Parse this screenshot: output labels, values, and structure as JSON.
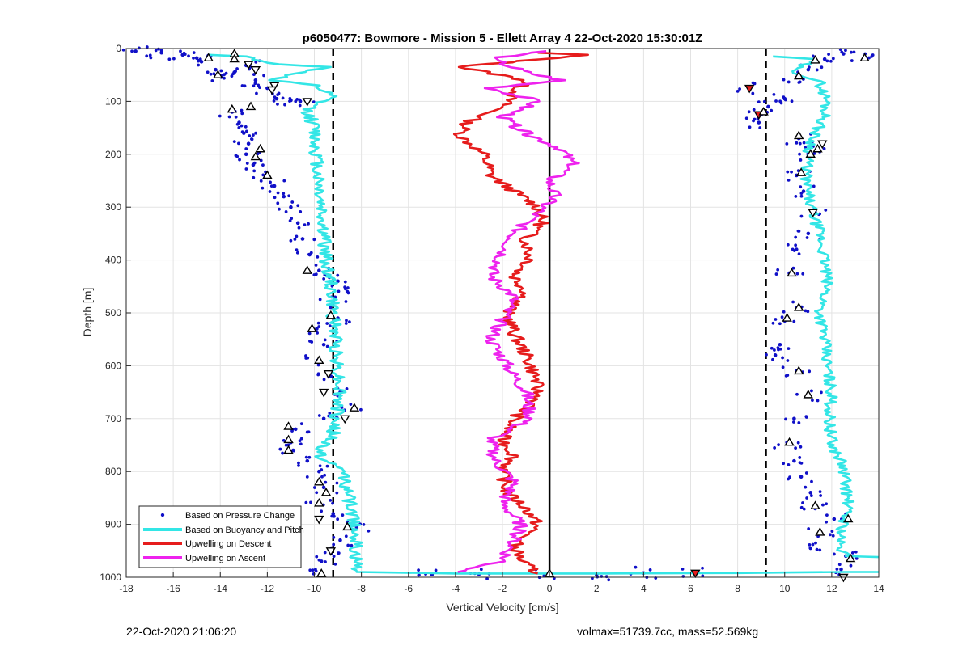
{
  "chart_data": {
    "type": "scatter",
    "title": "p6050477: Bowmore - Mission 5 - Ellett Array 4 22-Oct-2020 15:30:01Z",
    "xlabel": "Vertical Velocity [cm/s]",
    "ylabel": "Depth [m]",
    "xlim": [
      -18,
      14
    ],
    "ylim": [
      0,
      1000
    ],
    "y_reversed": true,
    "grid": true,
    "legend_position": "bottom-left",
    "xticks": [
      -18,
      -16,
      -14,
      -12,
      -10,
      -8,
      -6,
      -4,
      -2,
      0,
      2,
      4,
      6,
      8,
      10,
      12,
      14
    ],
    "yticks": [
      0,
      100,
      200,
      300,
      400,
      500,
      600,
      700,
      800,
      900,
      1000
    ],
    "reference_lines": [
      {
        "x": -9.2,
        "style": "dashed",
        "color": "#000000"
      },
      {
        "x": 9.2,
        "style": "dashed",
        "color": "#000000"
      },
      {
        "x": 0,
        "style": "solid",
        "color": "#000000"
      }
    ],
    "series": [
      {
        "name": "Based on Pressure Change",
        "style": "dots",
        "color": "#1010c8",
        "points": [
          [
            -17.6,
            5
          ],
          [
            -16.5,
            8
          ],
          [
            -15.6,
            12
          ],
          [
            -15.0,
            18
          ],
          [
            -14.8,
            25
          ],
          [
            -14.2,
            40
          ],
          [
            -14.0,
            52
          ],
          [
            -13.4,
            45
          ],
          [
            -12.9,
            32
          ],
          [
            -12.5,
            60
          ],
          [
            -12.0,
            75
          ],
          [
            -11.6,
            95
          ],
          [
            -11.0,
            98
          ],
          [
            -10.6,
            100
          ],
          [
            -13.5,
            120
          ],
          [
            -13.2,
            140
          ],
          [
            -13.0,
            160
          ],
          [
            -12.8,
            180
          ],
          [
            -12.9,
            200
          ],
          [
            -12.6,
            220
          ],
          [
            -12.0,
            240
          ],
          [
            -11.7,
            260
          ],
          [
            -11.3,
            280
          ],
          [
            -11.0,
            300
          ],
          [
            -10.7,
            330
          ],
          [
            -10.5,
            360
          ],
          [
            -10.2,
            390
          ],
          [
            -9.8,
            420
          ],
          [
            -9.0,
            440
          ],
          [
            -8.6,
            460
          ],
          [
            -9.2,
            480
          ],
          [
            -9.0,
            510
          ],
          [
            -9.9,
            530
          ],
          [
            -9.6,
            560
          ],
          [
            -9.8,
            590
          ],
          [
            -9.3,
            620
          ],
          [
            -8.9,
            650
          ],
          [
            -8.3,
            680
          ],
          [
            -9.6,
            700
          ],
          [
            -10.8,
            720
          ],
          [
            -11.0,
            745
          ],
          [
            -10.9,
            760
          ],
          [
            -10.3,
            780
          ],
          [
            -9.8,
            800
          ],
          [
            -9.6,
            830
          ],
          [
            -9.8,
            860
          ],
          [
            -9.2,
            880
          ],
          [
            -8.2,
            905
          ],
          [
            -8.9,
            930
          ],
          [
            -9.3,
            950
          ],
          [
            -9.7,
            970
          ],
          [
            -9.7,
            995
          ],
          [
            -5.0,
            995
          ],
          [
            -3.0,
            994
          ],
          [
            0.0,
            995
          ],
          [
            2.0,
            995
          ],
          [
            4.0,
            992
          ],
          [
            6.2,
            992
          ],
          [
            8.5,
            75
          ],
          [
            9.0,
            125
          ],
          [
            8.9,
            140
          ],
          [
            9.3,
            110
          ],
          [
            10.0,
            95
          ],
          [
            10.5,
            55
          ],
          [
            11.0,
            40
          ],
          [
            11.7,
            20
          ],
          [
            13.4,
            18
          ],
          [
            12.5,
            10
          ],
          [
            10.6,
            170
          ],
          [
            11.2,
            185
          ],
          [
            11.0,
            200
          ],
          [
            10.5,
            240
          ],
          [
            10.8,
            270
          ],
          [
            11.3,
            310
          ],
          [
            11.0,
            350
          ],
          [
            10.5,
            380
          ],
          [
            10.2,
            425
          ],
          [
            10.5,
            490
          ],
          [
            10.0,
            515
          ],
          [
            9.8,
            560
          ],
          [
            9.6,
            580
          ],
          [
            10.5,
            610
          ],
          [
            11.0,
            655
          ],
          [
            10.4,
            700
          ],
          [
            10.1,
            745
          ],
          [
            10.4,
            780
          ],
          [
            10.7,
            810
          ],
          [
            11.1,
            840
          ],
          [
            11.3,
            870
          ],
          [
            12.1,
            890
          ],
          [
            11.5,
            915
          ],
          [
            11.1,
            945
          ],
          [
            12.6,
            960
          ],
          [
            12.4,
            985
          ]
        ]
      },
      {
        "name": "Based on Buoyancy and Pitch",
        "style": "line",
        "color": "#33e6e6",
        "points": [
          [
            -14.5,
            12
          ],
          [
            -13.0,
            15
          ],
          [
            -11.5,
            30
          ],
          [
            -9.5,
            35
          ],
          [
            -12.0,
            60
          ],
          [
            -10.0,
            70
          ],
          [
            -9.3,
            90
          ],
          [
            -10.3,
            115
          ],
          [
            -10.0,
            150
          ],
          [
            -9.9,
            200
          ],
          [
            -9.8,
            250
          ],
          [
            -9.7,
            300
          ],
          [
            -9.6,
            350
          ],
          [
            -9.5,
            400
          ],
          [
            -9.3,
            450
          ],
          [
            -9.2,
            500
          ],
          [
            -9.1,
            550
          ],
          [
            -9.0,
            600
          ],
          [
            -8.9,
            650
          ],
          [
            -9.1,
            700
          ],
          [
            -9.2,
            730
          ],
          [
            -9.8,
            760
          ],
          [
            -9.6,
            780
          ],
          [
            -8.7,
            800
          ],
          [
            -8.6,
            840
          ],
          [
            -8.4,
            880
          ],
          [
            -8.2,
            910
          ],
          [
            -8.3,
            950
          ],
          [
            -8.2,
            990
          ],
          [
            -4.0,
            993
          ],
          [
            2.0,
            993
          ],
          [
            8.0,
            992
          ],
          [
            12.5,
            990
          ],
          [
            14.0,
            990
          ]
        ],
        "points_right": [
          [
            9.5,
            15
          ],
          [
            11.3,
            20
          ],
          [
            10.3,
            40
          ],
          [
            11.5,
            65
          ],
          [
            11.8,
            100
          ],
          [
            11.7,
            130
          ],
          [
            11.3,
            160
          ],
          [
            11.0,
            200
          ],
          [
            10.9,
            250
          ],
          [
            11.1,
            300
          ],
          [
            11.5,
            350
          ],
          [
            11.7,
            400
          ],
          [
            11.8,
            450
          ],
          [
            11.5,
            500
          ],
          [
            11.7,
            550
          ],
          [
            11.8,
            600
          ],
          [
            12.0,
            650
          ],
          [
            11.9,
            700
          ],
          [
            12.0,
            750
          ],
          [
            12.4,
            780
          ],
          [
            12.6,
            820
          ],
          [
            12.7,
            860
          ],
          [
            12.5,
            900
          ],
          [
            12.3,
            940
          ],
          [
            12.6,
            960
          ],
          [
            14.0,
            962
          ]
        ]
      },
      {
        "name": "Upwelling on Descent",
        "style": "line",
        "color": "#e61c1c",
        "points": [
          [
            -0.5,
            8
          ],
          [
            1.5,
            12
          ],
          [
            -3.8,
            35
          ],
          [
            -1.0,
            60
          ],
          [
            -2.0,
            110
          ],
          [
            -3.5,
            140
          ],
          [
            -3.8,
            165
          ],
          [
            -2.8,
            200
          ],
          [
            -2.5,
            240
          ],
          [
            -1.5,
            270
          ],
          [
            -0.5,
            300
          ],
          [
            -0.3,
            330
          ],
          [
            -1.0,
            360
          ],
          [
            -0.8,
            400
          ],
          [
            -1.5,
            430
          ],
          [
            -1.0,
            460
          ],
          [
            -1.8,
            500
          ],
          [
            -1.5,
            540
          ],
          [
            -1.0,
            580
          ],
          [
            -0.6,
            620
          ],
          [
            -0.5,
            660
          ],
          [
            -1.5,
            700
          ],
          [
            -2.0,
            740
          ],
          [
            -1.5,
            770
          ],
          [
            -2.0,
            800
          ],
          [
            -1.8,
            840
          ],
          [
            -1.0,
            870
          ],
          [
            -0.5,
            900
          ],
          [
            -1.5,
            940
          ],
          [
            -1.2,
            970
          ],
          [
            -0.5,
            993
          ]
        ]
      },
      {
        "name": "Upwelling on Ascent",
        "style": "line",
        "color": "#ee22ee",
        "points": [
          [
            -0.3,
            5
          ],
          [
            -2.5,
            20
          ],
          [
            -1.0,
            45
          ],
          [
            0.5,
            60
          ],
          [
            -2.5,
            75
          ],
          [
            -0.5,
            100
          ],
          [
            -2.0,
            130
          ],
          [
            -1.0,
            160
          ],
          [
            0.5,
            190
          ],
          [
            1.0,
            220
          ],
          [
            0.0,
            250
          ],
          [
            0.2,
            280
          ],
          [
            -0.5,
            310
          ],
          [
            -1.5,
            350
          ],
          [
            -2.0,
            390
          ],
          [
            -2.5,
            430
          ],
          [
            -1.5,
            470
          ],
          [
            -2.0,
            510
          ],
          [
            -2.5,
            550
          ],
          [
            -1.8,
            600
          ],
          [
            -1.0,
            650
          ],
          [
            -0.8,
            700
          ],
          [
            -2.5,
            740
          ],
          [
            -2.3,
            780
          ],
          [
            -1.5,
            820
          ],
          [
            -2.0,
            860
          ],
          [
            -1.2,
            900
          ],
          [
            -1.6,
            940
          ],
          [
            -2.0,
            970
          ],
          [
            -3.9,
            990
          ]
        ]
      }
    ],
    "markers_down": [
      [
        -12.8,
        30
      ],
      [
        -12.5,
        40
      ],
      [
        -11.7,
        70
      ],
      [
        -11.8,
        78
      ],
      [
        -10.3,
        100
      ],
      [
        -9.3,
        950
      ],
      [
        -9.8,
        890
      ],
      [
        -8.7,
        700
      ],
      [
        -9.4,
        615
      ],
      [
        -9.6,
        650
      ],
      [
        8.5,
        75
      ],
      [
        8.9,
        125
      ],
      [
        6.2,
        992
      ],
      [
        11.6,
        180
      ],
      [
        11.2,
        310
      ],
      [
        12.5,
        1000
      ]
    ],
    "markers_up": [
      [
        -14.5,
        18
      ],
      [
        -13.4,
        10
      ],
      [
        -14.1,
        50
      ],
      [
        -13.4,
        20
      ],
      [
        -12.7,
        110
      ],
      [
        -13.5,
        115
      ],
      [
        -12.3,
        190
      ],
      [
        -12.5,
        205
      ],
      [
        -12.0,
        240
      ],
      [
        -10.3,
        420
      ],
      [
        -9.3,
        505
      ],
      [
        -10.1,
        530
      ],
      [
        -9.8,
        590
      ],
      [
        -11.1,
        715
      ],
      [
        -11.1,
        740
      ],
      [
        -11.1,
        760
      ],
      [
        -9.8,
        820
      ],
      [
        -9.5,
        840
      ],
      [
        -9.8,
        860
      ],
      [
        -8.3,
        680
      ],
      [
        -8.6,
        905
      ],
      [
        -9.7,
        993
      ],
      [
        0.0,
        993
      ],
      [
        10.6,
        52
      ],
      [
        11.3,
        22
      ],
      [
        13.4,
        18
      ],
      [
        9.1,
        120
      ],
      [
        10.6,
        165
      ],
      [
        11.4,
        190
      ],
      [
        11.1,
        200
      ],
      [
        10.7,
        235
      ],
      [
        10.3,
        425
      ],
      [
        10.6,
        490
      ],
      [
        10.1,
        510
      ],
      [
        10.6,
        610
      ],
      [
        11.0,
        655
      ],
      [
        10.2,
        745
      ],
      [
        11.3,
        865
      ],
      [
        12.7,
        890
      ],
      [
        11.5,
        915
      ],
      [
        12.8,
        965
      ]
    ]
  },
  "footer": {
    "left": "22-Oct-2020 21:06:20",
    "right": "volmax=51739.7cc, mass=52.569kg"
  }
}
